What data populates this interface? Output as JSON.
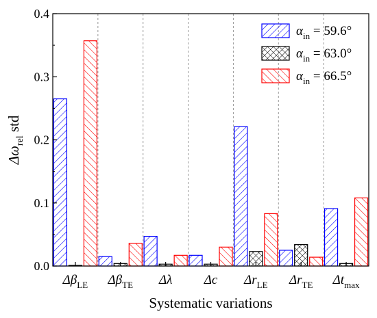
{
  "chart_data": {
    "type": "bar",
    "xlabel": "Systematic variations",
    "ylabel": {
      "base": "Δω",
      "sub": "rel",
      "rest": " std"
    },
    "ylim": [
      0,
      0.4
    ],
    "yticks": [
      "0.0",
      "0.1",
      "0.2",
      "0.3",
      "0.4"
    ],
    "ytick_values": [
      0,
      0.1,
      0.2,
      0.3,
      0.4
    ],
    "categories": [
      {
        "base": "Δβ",
        "sub": "LE"
      },
      {
        "base": "Δβ",
        "sub": "TE"
      },
      {
        "base": "Δλ",
        "sub": ""
      },
      {
        "base": "Δc",
        "sub": ""
      },
      {
        "base": "Δr",
        "sub": "LE"
      },
      {
        "base": "Δr",
        "sub": "TE"
      },
      {
        "base": "Δt",
        "sub": "max"
      }
    ],
    "legend_position": "top-right",
    "grid": "vertical dashed separators between categories",
    "series": [
      {
        "name": "α",
        "name_sub": "in",
        "name_rest": " = 59.6°",
        "color": "#0000ff",
        "pattern": "hatch-forward",
        "values": [
          0.265,
          0.015,
          0.047,
          0.017,
          0.221,
          0.025,
          0.091
        ]
      },
      {
        "name": "α",
        "name_sub": "in",
        "name_rest": " = 63.0°",
        "color": "#000000",
        "pattern": "crosshatch",
        "values": [
          0.001,
          0.004,
          0.003,
          0.003,
          0.023,
          0.034,
          0.004
        ]
      },
      {
        "name": "α",
        "name_sub": "in",
        "name_rest": " = 66.5°",
        "color": "#ff0000",
        "pattern": "hatch-backward",
        "values": [
          0.357,
          0.036,
          0.017,
          0.03,
          0.083,
          0.014,
          0.108
        ]
      }
    ]
  }
}
